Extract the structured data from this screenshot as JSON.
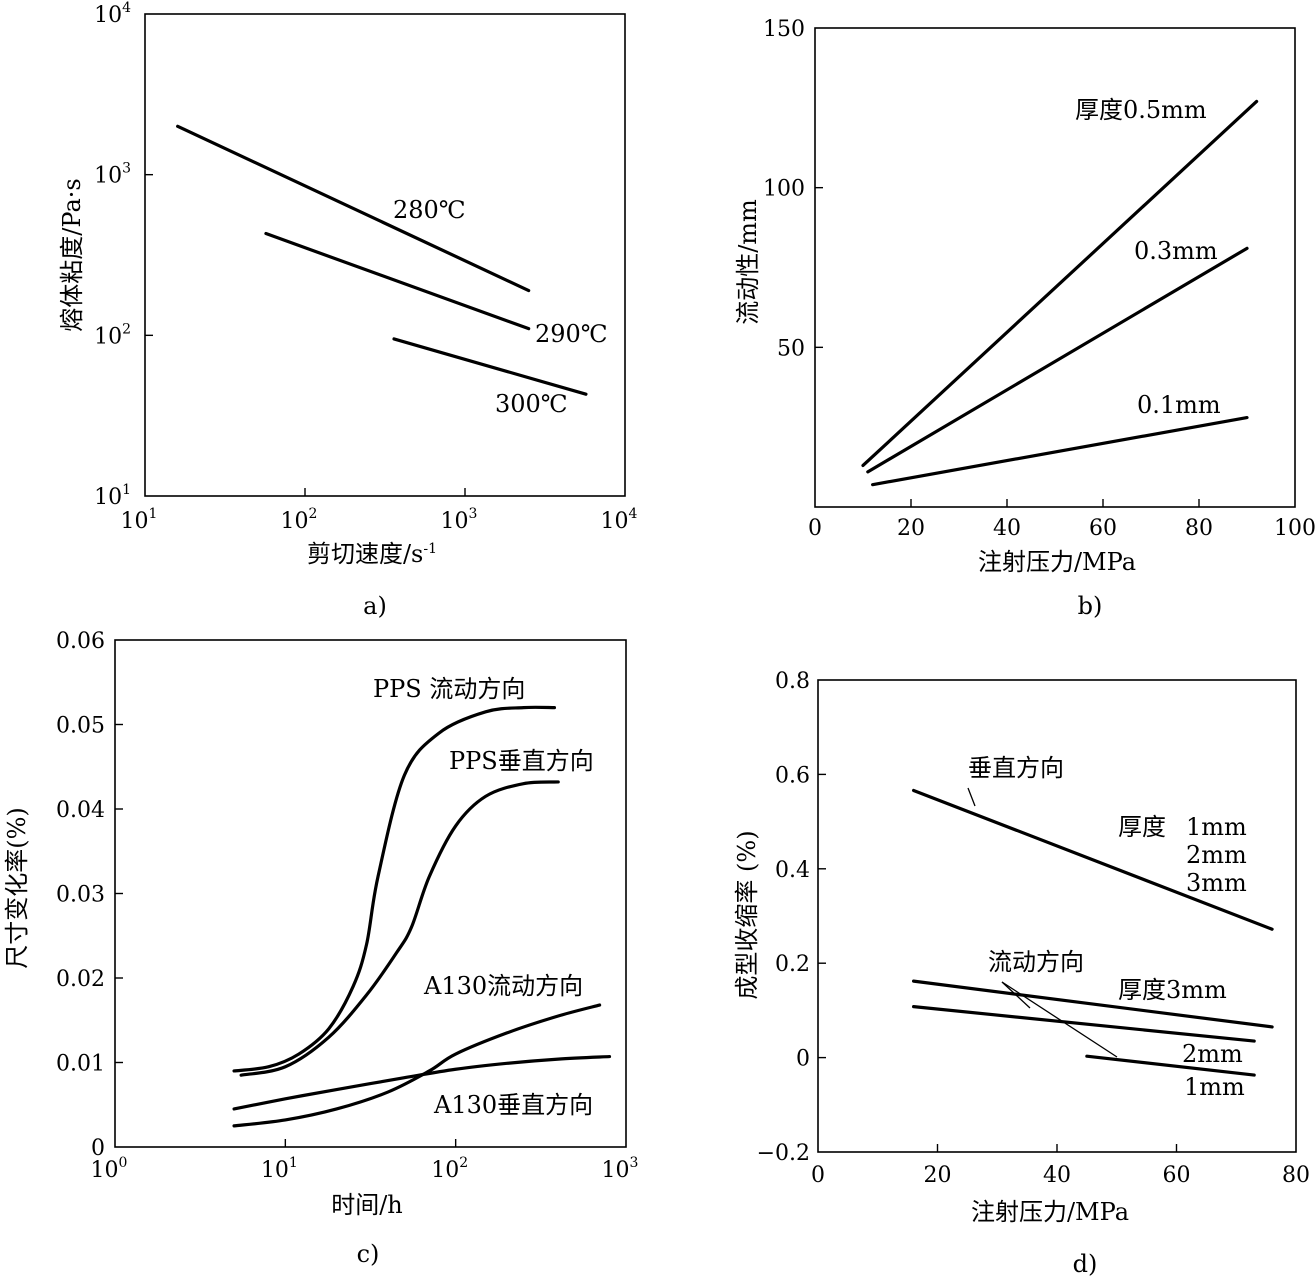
{
  "chart_data": [
    {
      "id": "a",
      "type": "line",
      "caption": "a)",
      "xlabel": "剪切速度/s",
      "xlabel_exp": "-1",
      "ylabel": "熔体粘度/Pa·s",
      "xscale": "log",
      "yscale": "log",
      "xlim": [
        10,
        10000
      ],
      "ylim": [
        10,
        10000
      ],
      "xticks": [
        {
          "base": "10",
          "exp": "1"
        },
        {
          "base": "10",
          "exp": "2"
        },
        {
          "base": "10",
          "exp": "3"
        },
        {
          "base": "10",
          "exp": "4"
        }
      ],
      "yticks": [
        {
          "base": "10",
          "exp": "1"
        },
        {
          "base": "10",
          "exp": "2"
        },
        {
          "base": "10",
          "exp": "3"
        },
        {
          "base": "10",
          "exp": "4"
        }
      ],
      "series": [
        {
          "name": "280℃",
          "x": [
            16,
            2500
          ],
          "y": [
            2000,
            190
          ]
        },
        {
          "name": "290℃",
          "x": [
            57,
            2500
          ],
          "y": [
            430,
            110
          ]
        },
        {
          "name": "300℃",
          "x": [
            360,
            5700
          ],
          "y": [
            95,
            43
          ]
        }
      ]
    },
    {
      "id": "b",
      "type": "line",
      "caption": "b)",
      "xlabel": "注射压力/MPa",
      "ylabel": "流动性/mm",
      "xlim": [
        0,
        100
      ],
      "ylim": [
        0,
        150
      ],
      "xticks": [
        "0",
        "20",
        "40",
        "60",
        "80",
        "100"
      ],
      "yticks": [
        "50",
        "100",
        "150"
      ],
      "series": [
        {
          "name": "厚度0.5mm",
          "x": [
            10,
            92
          ],
          "y": [
            13,
            127
          ]
        },
        {
          "name": "0.3mm",
          "x": [
            11,
            90
          ],
          "y": [
            11,
            81
          ]
        },
        {
          "name": "0.1mm",
          "x": [
            12,
            90
          ],
          "y": [
            7,
            28
          ]
        }
      ]
    },
    {
      "id": "c",
      "type": "line",
      "caption": "c)",
      "xlabel": "时间/h",
      "ylabel": "尺寸变化率(%)",
      "xscale": "log",
      "xlim": [
        1,
        1000
      ],
      "ylim": [
        0,
        0.06
      ],
      "xticks": [
        {
          "base": "10",
          "exp": "0"
        },
        {
          "base": "10",
          "exp": "1"
        },
        {
          "base": "10",
          "exp": "2"
        },
        {
          "base": "10",
          "exp": "3"
        }
      ],
      "yticks": [
        "0",
        "0.01",
        "0.02",
        "0.03",
        "0.04",
        "0.05",
        "0.06"
      ],
      "series": [
        {
          "name": "PPS 流动方向",
          "x": [
            5,
            8,
            12,
            18,
            25,
            30,
            35,
            50,
            80,
            150,
            250,
            380
          ],
          "y": [
            0.009,
            0.0095,
            0.011,
            0.014,
            0.019,
            0.024,
            0.032,
            0.044,
            0.049,
            0.0515,
            0.052,
            0.052
          ]
        },
        {
          "name": "PPS垂直方向",
          "x": [
            5.5,
            10,
            18,
            30,
            45,
            55,
            70,
            100,
            150,
            250,
            400
          ],
          "y": [
            0.0085,
            0.0095,
            0.013,
            0.018,
            0.023,
            0.026,
            0.032,
            0.038,
            0.0415,
            0.043,
            0.0432
          ]
        },
        {
          "name": "A130流动方向",
          "x": [
            5,
            10,
            20,
            40,
            70,
            100,
            200,
            400,
            700
          ],
          "y": [
            0.0025,
            0.0032,
            0.0045,
            0.0065,
            0.009,
            0.011,
            0.0135,
            0.0155,
            0.0168
          ]
        },
        {
          "name": "A130垂直方向",
          "x": [
            5,
            10,
            20,
            50,
            100,
            200,
            400,
            800
          ],
          "y": [
            0.0045,
            0.0057,
            0.0068,
            0.0082,
            0.0092,
            0.0099,
            0.0104,
            0.0107
          ]
        }
      ]
    },
    {
      "id": "d",
      "type": "line",
      "caption": "d)",
      "xlabel": "注射压力/MPa",
      "ylabel": "成型收缩率 (%)",
      "xlim": [
        0,
        80
      ],
      "ylim": [
        -0.2,
        0.8
      ],
      "xticks": [
        "0",
        "20",
        "40",
        "60",
        "80"
      ],
      "yticks": [
        "−0.2",
        "0",
        "0.2",
        "0.4",
        "0.6",
        "0.8"
      ],
      "series": [
        {
          "name": "垂直方向",
          "x": [
            16,
            76
          ],
          "y": [
            0.566,
            0.272
          ]
        },
        {
          "name": "流动方向 厚度3mm",
          "x": [
            16,
            76
          ],
          "y": [
            0.162,
            0.065
          ]
        },
        {
          "name": "流动方向 2mm",
          "x": [
            16,
            73
          ],
          "y": [
            0.108,
            0.035
          ]
        },
        {
          "name": "流动方向 1mm",
          "x": [
            45,
            73
          ],
          "y": [
            0.003,
            -0.037
          ]
        }
      ],
      "annotations": {
        "perp": "垂直方向",
        "thickness_perp": [
          "厚度",
          "1mm",
          "2mm",
          "3mm"
        ],
        "flow": "流动方向",
        "thickness_flow": [
          "厚度3mm",
          "2mm",
          "1mm"
        ]
      }
    }
  ]
}
